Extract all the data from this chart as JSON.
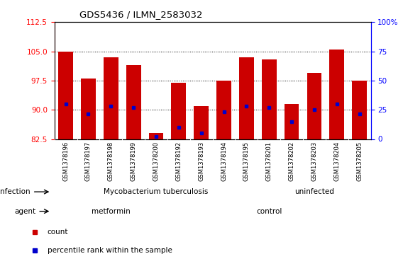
{
  "title": "GDS5436 / ILMN_2583032",
  "samples": [
    "GSM1378196",
    "GSM1378197",
    "GSM1378198",
    "GSM1378199",
    "GSM1378200",
    "GSM1378192",
    "GSM1378193",
    "GSM1378194",
    "GSM1378195",
    "GSM1378201",
    "GSM1378202",
    "GSM1378203",
    "GSM1378204",
    "GSM1378205"
  ],
  "bar_tops": [
    105.0,
    98.0,
    103.5,
    101.5,
    84.0,
    97.0,
    91.0,
    97.5,
    103.5,
    103.0,
    91.5,
    99.5,
    105.5,
    97.5
  ],
  "bar_bottom": 82.5,
  "percentile_values": [
    91.5,
    89.0,
    91.0,
    90.5,
    83.2,
    85.5,
    84.0,
    89.5,
    91.0,
    90.5,
    87.0,
    90.0,
    91.5,
    89.0
  ],
  "ylim_left": [
    82.5,
    112.5
  ],
  "yticks_left": [
    82.5,
    90.0,
    97.5,
    105.0,
    112.5
  ],
  "ylim_right": [
    0,
    100
  ],
  "yticks_right": [
    0,
    25,
    50,
    75,
    100
  ],
  "ytick_labels_right": [
    "0",
    "25",
    "50",
    "75",
    "100%"
  ],
  "bar_color": "#cc0000",
  "percentile_color": "#0000cc",
  "infection_tb_label": "Mycobacterium tuberculosis",
  "infection_uninf_label": "uninfected",
  "agent_metformin_label": "metformin",
  "agent_control_label": "control",
  "infection_label": "infection",
  "agent_label": "agent",
  "infection_tb_color": "#bbffbb",
  "infection_uninf_color": "#44dd44",
  "agent_metformin_color": "#ee88ee",
  "agent_control_color": "#dd55dd",
  "xtick_bg_color": "#d0d0d0",
  "legend_count": "count",
  "legend_percentile": "percentile rank within the sample",
  "tb_cols": 9,
  "uninf_cols": 5,
  "metformin_cols": 5,
  "control_cols": 9,
  "n_samples": 14
}
